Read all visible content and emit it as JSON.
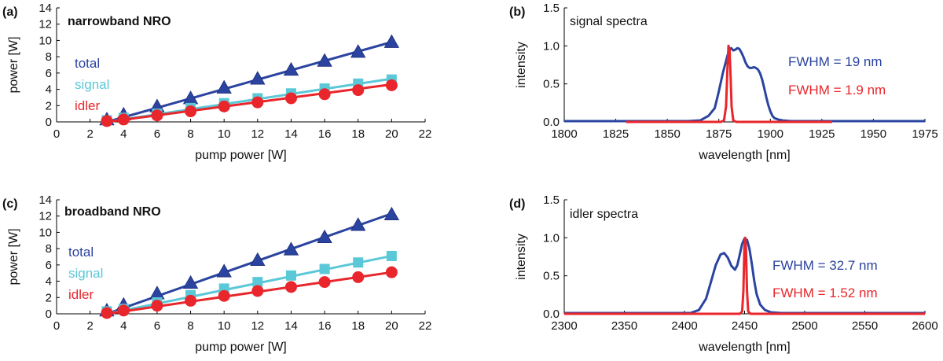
{
  "colors": {
    "total": "#2b44a0",
    "signal": "#5bc8d8",
    "idler": "#e8262b",
    "spectrum_broad": "#2b44a0",
    "spectrum_narrow": "#e8262b"
  },
  "chart_data": [
    {
      "type": "line",
      "panel_label": "(a)",
      "title": "narrowband NRO",
      "xlabel": "pump power [W]",
      "ylabel": "power [W]",
      "xlim": [
        0,
        22
      ],
      "ylim": [
        0,
        14
      ],
      "xticks": [
        0,
        2,
        4,
        6,
        8,
        10,
        12,
        14,
        16,
        18,
        20,
        22
      ],
      "yticks": [
        0,
        2,
        4,
        6,
        8,
        10,
        12,
        14
      ],
      "legend_position": "left",
      "series": [
        {
          "name": "total",
          "color_key": "total",
          "marker": "triangle",
          "x": [
            3,
            4,
            6,
            8,
            10,
            12,
            14,
            16,
            18,
            20
          ],
          "y": [
            0.3,
            0.9,
            1.9,
            2.9,
            4.2,
            5.3,
            6.4,
            7.5,
            8.6,
            9.8
          ],
          "fit": [
            [
              3,
              0
            ],
            [
              20,
              9.8
            ]
          ]
        },
        {
          "name": "signal",
          "color_key": "signal",
          "marker": "square",
          "x": [
            3,
            4,
            6,
            8,
            10,
            12,
            14,
            16,
            18,
            20
          ],
          "y": [
            0.2,
            0.5,
            1.0,
            1.7,
            2.3,
            2.9,
            3.5,
            4.1,
            4.7,
            5.2
          ],
          "fit": [
            [
              3,
              0
            ],
            [
              20,
              5.3
            ]
          ]
        },
        {
          "name": "idler",
          "color_key": "idler",
          "marker": "circle",
          "x": [
            3,
            4,
            6,
            8,
            10,
            12,
            14,
            16,
            18,
            20
          ],
          "y": [
            0.1,
            0.3,
            0.8,
            1.3,
            1.9,
            2.4,
            2.9,
            3.4,
            3.9,
            4.5
          ],
          "fit": [
            [
              3,
              0
            ],
            [
              20,
              4.6
            ]
          ]
        }
      ]
    },
    {
      "type": "line",
      "panel_label": "(b)",
      "title": "signal spectra",
      "xlabel": "wavelength [nm]",
      "ylabel": "intensity",
      "xlim": [
        1800,
        1975
      ],
      "ylim": [
        0,
        1.5
      ],
      "xticks": [
        1800,
        1825,
        1850,
        1875,
        1900,
        1925,
        1950,
        1975
      ],
      "yticks": [
        0.0,
        0.5,
        1.0,
        1.5
      ],
      "ytick_labels": [
        "0.0",
        "0.5",
        "1.0",
        "1.5"
      ],
      "annotations": [
        {
          "text": "FWHM = 19 nm",
          "color_key": "spectrum_broad"
        },
        {
          "text": "FWHM = 1.9 nm",
          "color_key": "spectrum_narrow"
        }
      ],
      "series": [
        {
          "color_key": "spectrum_broad",
          "x": [
            1800,
            1860,
            1866,
            1870,
            1873,
            1875,
            1877,
            1879,
            1880,
            1881,
            1882,
            1883,
            1884,
            1885,
            1886,
            1887,
            1888,
            1889,
            1890,
            1891,
            1892,
            1893,
            1894,
            1895,
            1896,
            1897,
            1898,
            1899,
            1900,
            1901,
            1902,
            1904,
            1906,
            1910,
            1975
          ],
          "y": [
            0.01,
            0.01,
            0.02,
            0.08,
            0.18,
            0.4,
            0.65,
            0.85,
            0.95,
            0.97,
            0.94,
            0.95,
            0.97,
            0.96,
            0.91,
            0.85,
            0.78,
            0.73,
            0.71,
            0.71,
            0.72,
            0.71,
            0.69,
            0.64,
            0.56,
            0.45,
            0.33,
            0.22,
            0.14,
            0.08,
            0.05,
            0.03,
            0.02,
            0.01,
            0.01
          ]
        },
        {
          "color_key": "spectrum_narrow",
          "x": [
            1830,
            1876,
            1877.5,
            1878.5,
            1879.2,
            1879.7,
            1880.2,
            1880.7,
            1881.2,
            1882,
            1883.5,
            1930
          ],
          "y": [
            0.0,
            0.0,
            0.02,
            0.2,
            0.7,
            1.0,
            0.95,
            0.6,
            0.2,
            0.02,
            0.0,
            0.0
          ]
        }
      ]
    },
    {
      "type": "line",
      "panel_label": "(c)",
      "title": "broadband NRO",
      "xlabel": "pump power [W]",
      "ylabel": "power [W]",
      "xlim": [
        0,
        22
      ],
      "ylim": [
        0,
        14
      ],
      "xticks": [
        0,
        2,
        4,
        6,
        8,
        10,
        12,
        14,
        16,
        18,
        20,
        22
      ],
      "yticks": [
        0,
        2,
        4,
        6,
        8,
        10,
        12,
        14
      ],
      "legend_position": "left",
      "series": [
        {
          "name": "total",
          "color_key": "total",
          "marker": "triangle",
          "x": [
            3,
            4,
            6,
            8,
            10,
            12,
            14,
            16,
            18,
            20
          ],
          "y": [
            0.4,
            1.1,
            2.5,
            3.8,
            5.2,
            6.6,
            7.9,
            9.4,
            10.9,
            12.2
          ],
          "fit": [
            [
              3,
              0
            ],
            [
              20,
              12.3
            ]
          ]
        },
        {
          "name": "signal",
          "color_key": "signal",
          "marker": "square",
          "x": [
            3,
            4,
            6,
            8,
            10,
            12,
            14,
            16,
            18,
            20
          ],
          "y": [
            0.3,
            0.6,
            1.4,
            2.3,
            3.1,
            3.9,
            4.7,
            5.5,
            6.3,
            7.1
          ],
          "fit": [
            [
              3,
              0
            ],
            [
              20,
              7.1
            ]
          ]
        },
        {
          "name": "idler",
          "color_key": "idler",
          "marker": "circle",
          "x": [
            3,
            4,
            6,
            8,
            10,
            12,
            14,
            16,
            18,
            20
          ],
          "y": [
            0.1,
            0.4,
            1.0,
            1.6,
            2.2,
            2.8,
            3.3,
            3.9,
            4.5,
            5.1
          ],
          "fit": [
            [
              3,
              0
            ],
            [
              20,
              5.1
            ]
          ]
        }
      ]
    },
    {
      "type": "line",
      "panel_label": "(d)",
      "title": "idler spectra",
      "xlabel": "wavelength [nm]",
      "ylabel": "intensity",
      "xlim": [
        2300,
        2600
      ],
      "ylim": [
        0,
        1.5
      ],
      "xticks": [
        2300,
        2350,
        2400,
        2450,
        2500,
        2550,
        2600
      ],
      "yticks": [
        0.0,
        0.5,
        1.0,
        1.5
      ],
      "ytick_labels": [
        "0.0",
        "0.5",
        "1.0",
        "1.5"
      ],
      "annotations": [
        {
          "text": "FWHM = 32.7 nm",
          "color_key": "spectrum_broad"
        },
        {
          "text": "FWHM = 1.52 nm",
          "color_key": "spectrum_narrow"
        }
      ],
      "series": [
        {
          "color_key": "spectrum_broad",
          "x": [
            2300,
            2405,
            2412,
            2418,
            2422,
            2426,
            2430,
            2433,
            2436,
            2439,
            2442,
            2444,
            2446,
            2448,
            2450,
            2452,
            2454,
            2456,
            2458,
            2460,
            2463,
            2467,
            2472,
            2480,
            2600
          ],
          "y": [
            0.01,
            0.01,
            0.05,
            0.2,
            0.42,
            0.64,
            0.78,
            0.8,
            0.74,
            0.63,
            0.58,
            0.64,
            0.78,
            0.92,
            0.99,
            0.97,
            0.86,
            0.66,
            0.44,
            0.26,
            0.12,
            0.05,
            0.02,
            0.01,
            0.01
          ]
        },
        {
          "color_key": "spectrum_narrow",
          "x": [
            2300,
            2446,
            2448,
            2449,
            2449.8,
            2450.5,
            2451.2,
            2452,
            2453,
            2455,
            2600
          ],
          "y": [
            0.0,
            0.0,
            0.03,
            0.3,
            0.85,
            1.0,
            0.85,
            0.3,
            0.03,
            0.0,
            0.0
          ]
        }
      ]
    }
  ]
}
